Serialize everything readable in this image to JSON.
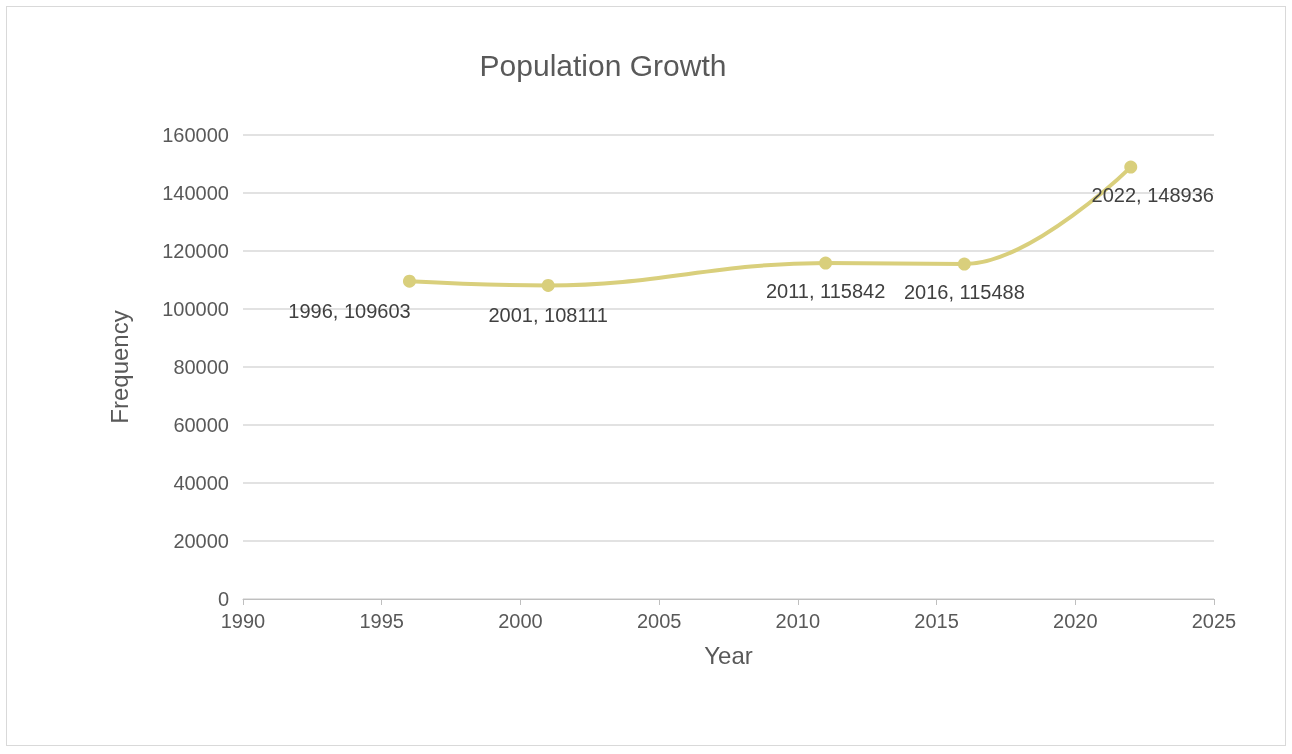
{
  "chart_data": {
    "type": "line",
    "title": "Population Growth",
    "xlabel": "Year",
    "ylabel": "Frequency",
    "x": [
      1996,
      2001,
      2011,
      2016,
      2022
    ],
    "series": [
      {
        "color": "#d9cf7c",
        "values": [
          109603,
          108111,
          115842,
          115488,
          148936
        ],
        "value_labels": [
          "1996, 109603",
          "2001, 108111",
          "2011, 115842",
          "2016, 115488",
          "2022, 148936"
        ]
      }
    ],
    "xlim": [
      1990,
      2025
    ],
    "xticks": [
      1990,
      1995,
      2000,
      2005,
      2010,
      2015,
      2020,
      2025
    ],
    "ylim": [
      0,
      160000
    ],
    "yticks": [
      0,
      20000,
      40000,
      60000,
      80000,
      100000,
      120000,
      140000,
      160000
    ],
    "grid": "y",
    "marker": "circle",
    "line_style": "solid"
  }
}
